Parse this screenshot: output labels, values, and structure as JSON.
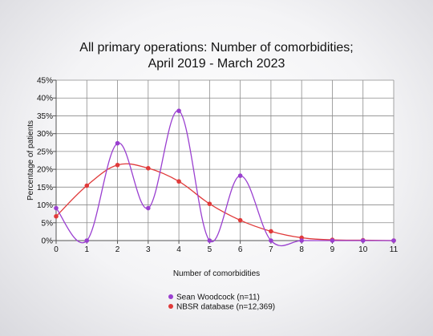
{
  "chart_data": {
    "type": "line",
    "title": [
      "All primary operations: Number of comorbidities;",
      "April 2019 - March 2023"
    ],
    "xlabel": "Number of comorbidities",
    "ylabel": "Percentage of patients",
    "xlim": [
      0,
      11
    ],
    "ylim": [
      0,
      45
    ],
    "x_ticks": [
      "0",
      "1",
      "2",
      "3",
      "4",
      "5",
      "6",
      "7",
      "8",
      "9",
      "10",
      "11"
    ],
    "y_ticks": [
      "0%",
      "5%",
      "10%",
      "15%",
      "20%",
      "25%",
      "30%",
      "35%",
      "40%",
      "45%"
    ],
    "grid": true,
    "legend_position": "bottom-center",
    "x": [
      0,
      1,
      2,
      3,
      4,
      5,
      6,
      7,
      8,
      9,
      10,
      11
    ],
    "series": [
      {
        "name": "Sean Woodcock (n=11)",
        "color": "#9a3fd0",
        "smooth": true,
        "values": [
          9.1,
          0,
          27.3,
          9.1,
          36.4,
          0,
          18.2,
          0,
          0,
          0,
          0,
          0
        ]
      },
      {
        "name": "NBSR database (n=12,369)",
        "color": "#e03a3a",
        "smooth": true,
        "values": [
          6.8,
          15.4,
          21.2,
          20.3,
          16.6,
          10.3,
          5.7,
          2.6,
          0.8,
          0.2,
          0.1,
          0.0
        ]
      }
    ]
  }
}
